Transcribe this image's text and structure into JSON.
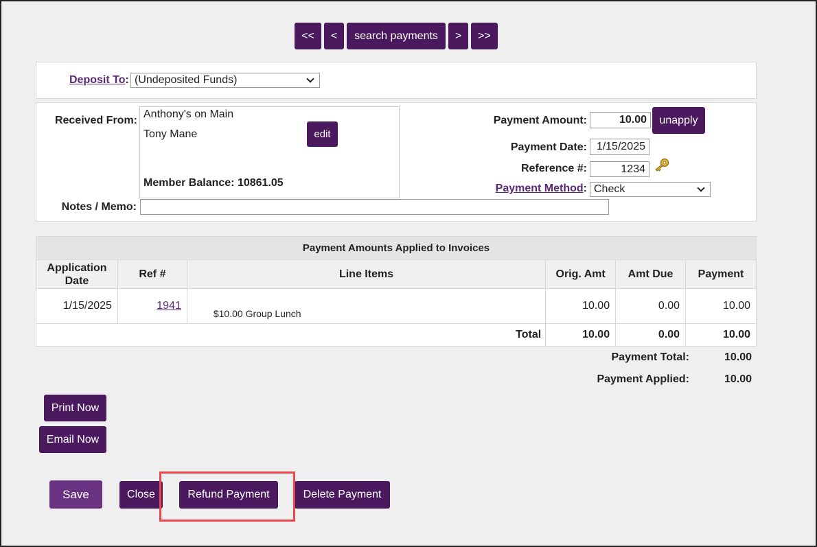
{
  "nav": {
    "first": "<<",
    "prev": "<",
    "search": "search payments",
    "next": ">",
    "last": ">>"
  },
  "deposit": {
    "label": "Deposit To",
    "colon": ":",
    "value": "(Undeposited Funds)"
  },
  "received": {
    "label": "Received From:",
    "name": "Anthony's on Main",
    "contact": "Tony Mane",
    "edit": "edit",
    "balance_label": "Member Balance:",
    "balance_value": "10861.05"
  },
  "notes": {
    "label": "Notes / Memo:",
    "value": ""
  },
  "payment": {
    "amount_label": "Payment Amount:",
    "amount": "10.00",
    "unapply": "unapply",
    "date_label": "Payment Date:",
    "date": "1/15/2025",
    "ref_label": "Reference #:",
    "ref": "1234",
    "method_label": "Payment Method",
    "method_colon": ":",
    "method": "Check"
  },
  "invoices": {
    "caption": "Payment Amounts Applied to Invoices",
    "headers": {
      "app_date": "Application Date",
      "ref": "Ref #",
      "line_items": "Line Items",
      "orig": "Orig. Amt",
      "due": "Amt Due",
      "payment": "Payment"
    },
    "rows": [
      {
        "date": "1/15/2025",
        "ref": "1941",
        "item_amount": "$10.00",
        "item_desc": "Group Lunch",
        "orig": "10.00",
        "due": "0.00",
        "payment": "10.00"
      }
    ],
    "total": {
      "label": "Total",
      "orig": "10.00",
      "due": "0.00",
      "payment": "10.00"
    }
  },
  "summary": {
    "total_label": "Payment Total:",
    "total": "10.00",
    "applied_label": "Payment Applied:",
    "applied": "10.00"
  },
  "actions": {
    "print": "Print Now",
    "email": "Email Now",
    "save": "Save",
    "close": "Close",
    "refund": "Refund Payment",
    "delete": "Delete Payment"
  },
  "icons": {
    "lookup": "key-icon",
    "dropdown": "chevron-down-icon"
  },
  "colors": {
    "button": "#4b1a5e",
    "save_button": "#6a3282",
    "link": "#5b2a77",
    "highlight": "#e8474b"
  }
}
